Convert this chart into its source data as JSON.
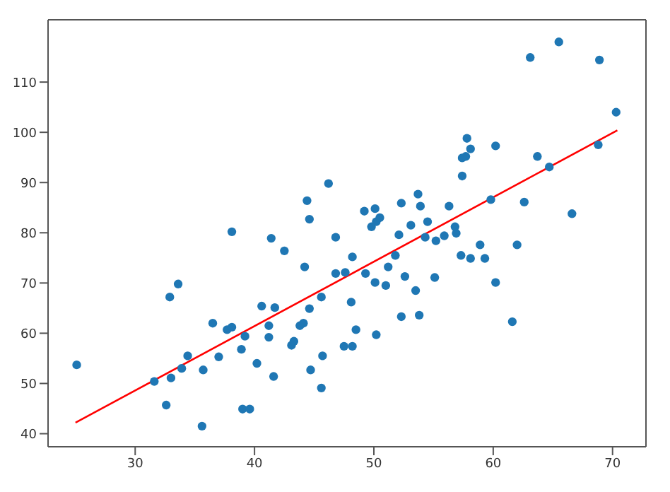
{
  "chart_data": {
    "type": "scatter",
    "xlim": [
      22.7,
      72.8
    ],
    "ylim": [
      37.4,
      122.4
    ],
    "xticks": [
      30,
      40,
      50,
      60,
      70
    ],
    "yticks": [
      40,
      50,
      60,
      70,
      80,
      90,
      100,
      110
    ],
    "grid": false,
    "legend": false,
    "series": [
      {
        "color": "#1f77b4",
        "marker": "circle",
        "x": [
          25.1,
          31.6,
          32.6,
          33.0,
          32.9,
          33.6,
          33.9,
          34.4,
          35.6,
          35.7,
          36.5,
          37.0,
          37.7,
          38.1,
          38.1,
          38.9,
          39.0,
          39.2,
          39.6,
          40.2,
          40.6,
          41.2,
          41.2,
          41.4,
          41.6,
          41.7,
          42.5,
          43.1,
          43.3,
          43.8,
          44.1,
          44.2,
          44.4,
          44.6,
          44.6,
          44.7,
          45.6,
          45.6,
          45.7,
          46.2,
          46.8,
          46.8,
          47.5,
          47.6,
          48.2,
          48.1,
          48.2,
          48.5,
          49.2,
          49.3,
          49.8,
          50.1,
          50.1,
          50.2,
          50.2,
          50.5,
          51.0,
          51.2,
          51.8,
          52.1,
          52.3,
          52.3,
          52.6,
          53.1,
          53.5,
          53.8,
          53.7,
          53.9,
          54.3,
          54.5,
          55.1,
          55.2,
          55.9,
          56.3,
          56.8,
          56.9,
          57.3,
          57.4,
          57.4,
          57.7,
          57.8,
          58.1,
          58.1,
          58.9,
          59.3,
          59.8,
          60.2,
          60.2,
          61.6,
          62.0,
          62.6,
          63.1,
          63.7,
          64.7,
          65.5,
          66.6,
          68.8,
          68.9,
          70.3
        ],
        "values": [
          53.7,
          50.4,
          45.7,
          51.1,
          67.2,
          69.8,
          53.0,
          55.5,
          41.5,
          52.7,
          62.0,
          55.3,
          60.7,
          61.2,
          80.2,
          56.8,
          44.9,
          59.4,
          44.9,
          54.0,
          65.4,
          59.2,
          61.5,
          78.9,
          51.4,
          65.1,
          76.4,
          57.6,
          58.4,
          61.5,
          62.0,
          73.2,
          86.4,
          82.7,
          64.9,
          52.7,
          49.1,
          67.2,
          55.5,
          89.8,
          79.1,
          71.9,
          57.4,
          72.1,
          75.2,
          66.2,
          57.4,
          60.7,
          84.3,
          71.9,
          81.2,
          84.8,
          70.1,
          82.2,
          59.7,
          83.0,
          69.5,
          73.2,
          75.5,
          79.6,
          63.3,
          85.9,
          71.3,
          81.5,
          68.5,
          63.6,
          87.7,
          85.3,
          79.1,
          82.2,
          71.1,
          78.4,
          79.4,
          85.3,
          81.2,
          79.9,
          75.5,
          91.3,
          94.9,
          95.2,
          98.8,
          96.7,
          74.9,
          77.6,
          74.9,
          86.6,
          97.3,
          70.1,
          62.3,
          77.6,
          86.1,
          114.9,
          95.2,
          93.1,
          118.0,
          83.8,
          97.5,
          114.4,
          104.0
        ]
      },
      {
        "type": "line",
        "marker": "none",
        "color": "#ff0000",
        "x": [
          25.0,
          70.4
        ],
        "values": [
          42.2,
          100.4
        ]
      }
    ]
  }
}
